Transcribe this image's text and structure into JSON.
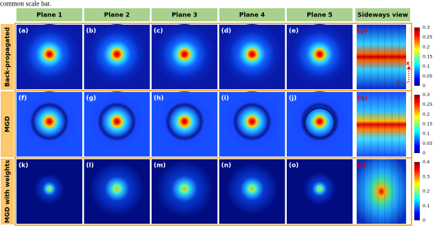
{
  "caption_fragment": "common scale bar.",
  "columns": [
    "Plane 1",
    "Plane 2",
    "Plane 3",
    "Plane 4",
    "Plane 5",
    "Sideways view"
  ],
  "rows": [
    {
      "label": "Back-propagated",
      "panels": [
        "(a)",
        "(b)",
        "(c)",
        "(d)",
        "(e)",
        "(p)"
      ],
      "colorbar_ticks": [
        "0",
        "0.05",
        "0.1",
        "0.15",
        "0.2",
        "0.25",
        "0.3"
      ]
    },
    {
      "label": "MGD",
      "panels": [
        "(f)",
        "(g)",
        "(h)",
        "(i)",
        "(j)",
        "(q)"
      ],
      "colorbar_ticks": [
        "0",
        "0.05",
        "0.1",
        "0.15",
        "0.2",
        "0.25",
        "0.3"
      ]
    },
    {
      "label": "MGD with weights",
      "panels": [
        "(k)",
        "(l)",
        "(m)",
        "(n)",
        "(o)",
        "(r)"
      ],
      "colorbar_ticks": [
        "0",
        "0.1",
        "0.2",
        "0.3",
        "0.4"
      ]
    }
  ],
  "sideways_axes": {
    "x": "x",
    "z": "z"
  }
}
